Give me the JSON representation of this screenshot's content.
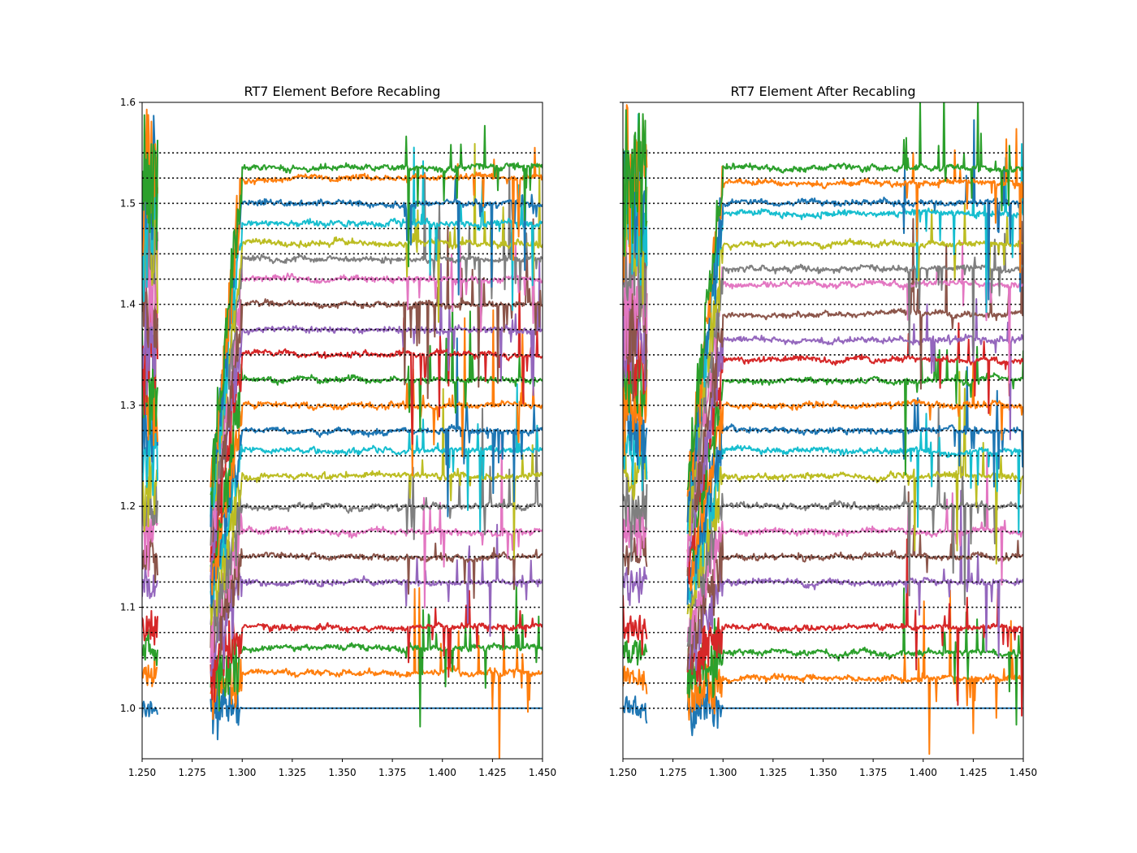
{
  "chart_data": [
    {
      "type": "line",
      "title": "RT7 Element Before Recabling",
      "xlim": [
        1.25,
        1.45
      ],
      "ylim": [
        0.95,
        1.6
      ],
      "x_ticks": [
        "1.250",
        "1.275",
        "1.300",
        "1.325",
        "1.350",
        "1.375",
        "1.400",
        "1.425",
        "1.450"
      ],
      "y_ticks": [
        "1.0",
        "1.1",
        "1.2",
        "1.3",
        "1.4",
        "1.5",
        "1.6"
      ],
      "reference_lines": [
        1.0,
        1.025,
        1.05,
        1.075,
        1.1,
        1.125,
        1.15,
        1.175,
        1.2,
        1.225,
        1.25,
        1.275,
        1.3,
        1.325,
        1.35,
        1.375,
        1.4,
        1.425,
        1.45,
        1.475,
        1.5,
        1.525,
        1.55
      ],
      "series_levels": [
        1.0,
        1.035,
        1.06,
        1.08,
        1.125,
        1.15,
        1.175,
        1.2,
        1.23,
        1.255,
        1.275,
        1.3,
        1.325,
        1.35,
        1.375,
        1.4,
        1.425,
        1.445,
        1.46,
        1.48,
        1.5,
        1.525,
        1.535
      ],
      "gap_x": [
        1.258,
        1.284
      ],
      "noisy_x_start": 1.38
    },
    {
      "type": "line",
      "title": "RT7 Element After Recabling",
      "xlim": [
        1.25,
        1.45
      ],
      "ylim": [
        0.95,
        1.6
      ],
      "x_ticks": [
        "1.250",
        "1.275",
        "1.300",
        "1.325",
        "1.350",
        "1.375",
        "1.400",
        "1.425",
        "1.450"
      ],
      "y_ticks": [],
      "reference_lines": [
        1.0,
        1.025,
        1.05,
        1.075,
        1.1,
        1.125,
        1.15,
        1.175,
        1.2,
        1.225,
        1.25,
        1.275,
        1.3,
        1.325,
        1.35,
        1.375,
        1.4,
        1.425,
        1.45,
        1.475,
        1.5,
        1.525,
        1.55
      ],
      "series_levels": [
        1.0,
        1.03,
        1.055,
        1.08,
        1.125,
        1.15,
        1.175,
        1.2,
        1.23,
        1.255,
        1.275,
        1.3,
        1.325,
        1.345,
        1.365,
        1.39,
        1.42,
        1.435,
        1.46,
        1.49,
        1.5,
        1.52,
        1.535
      ],
      "gap_x": [
        1.262,
        1.282
      ],
      "noisy_x_start": 1.39
    }
  ],
  "colors": [
    "#1f77b4",
    "#ff7f0e",
    "#2ca02c",
    "#d62728",
    "#9467bd",
    "#8c564b",
    "#e377c2",
    "#7f7f7f",
    "#bcbd22",
    "#17becf"
  ]
}
